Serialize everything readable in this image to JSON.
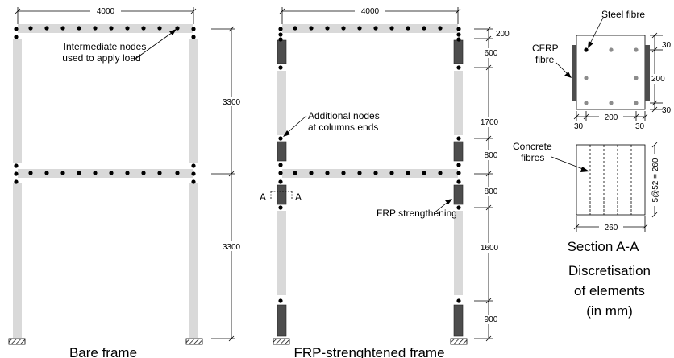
{
  "bare_frame": {
    "caption": "Bare frame",
    "span_dim": "4000",
    "storey_upper_dim": "3300",
    "storey_lower_dim": "3300",
    "annotation_line1": "Intermediate nodes",
    "annotation_line2": "used to apply load"
  },
  "frp_frame": {
    "caption": "FRP-strenghtened frame",
    "span_dim": "4000",
    "dims": [
      "200",
      "600",
      "1700",
      "800",
      "800",
      "1600",
      "900"
    ],
    "annotation_nodes_line1": "Additional nodes",
    "annotation_nodes_line2": "at columns ends",
    "annotation_frp": "FRP strengthening",
    "section_marker": "A"
  },
  "section": {
    "steel_label": "Steel fibre",
    "cfrp_line1": "CFRP",
    "cfrp_line2": "fibre",
    "dim_right_top": "30",
    "dim_right_mid": "200",
    "dim_right_bot": "30",
    "dim_bottom_left": "30",
    "dim_bottom_mid": "200",
    "dim_bottom_right": "30",
    "concrete_line1": "Concrete",
    "concrete_line2": "fibres",
    "width_dim": "260",
    "depth_dim": "5@52 = 260",
    "title": "Section A-A",
    "note_line1": "Discretisation",
    "note_line2": "of elements",
    "note_line3": "(in mm)"
  },
  "colors": {
    "member": "#d9d9d9",
    "frp": "#4d4d4d",
    "steel_fibre_gray": "#8c8c8c"
  }
}
